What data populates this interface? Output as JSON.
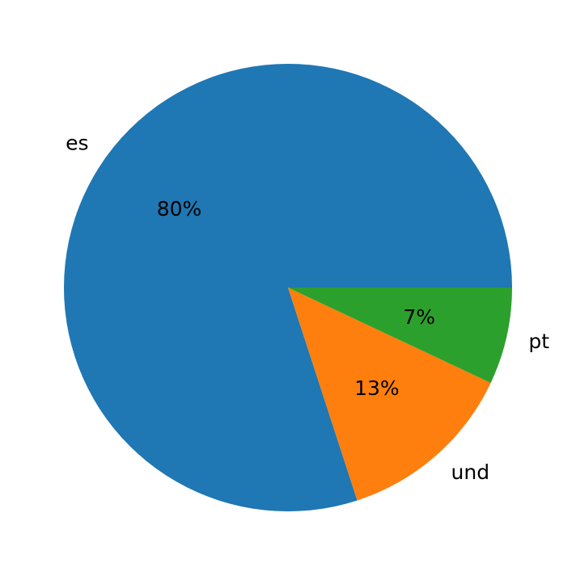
{
  "chart_data": {
    "type": "pie",
    "categories": [
      "es",
      "und",
      "pt"
    ],
    "values": [
      80,
      13,
      7
    ],
    "value_labels": [
      "80%",
      "13%",
      "7%"
    ],
    "colors": [
      "#1f77b4",
      "#ff7f0e",
      "#2ca02c"
    ],
    "start_angle_deg": 0,
    "direction": "counterclockwise",
    "title": "",
    "legend": "none"
  }
}
